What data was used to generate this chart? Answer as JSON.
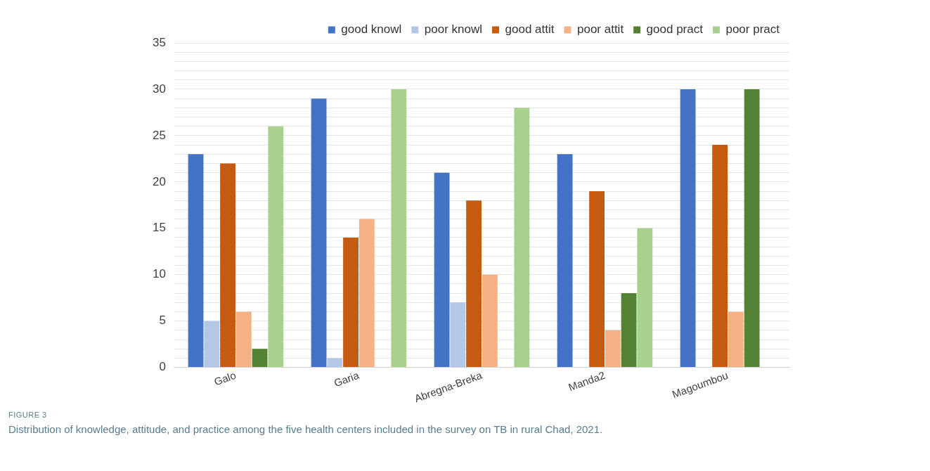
{
  "chart_data": {
    "type": "bar",
    "categories": [
      "Galo",
      "Garia",
      "Abregna-Breka",
      "Manda2",
      "Magoumbou"
    ],
    "series": [
      {
        "name": "good knowl",
        "color": "#4472c4",
        "values": [
          23,
          29,
          21,
          23,
          30
        ]
      },
      {
        "name": "poor knowl",
        "color": "#b4c7e7",
        "values": [
          5,
          1,
          7,
          0,
          0
        ]
      },
      {
        "name": "good attit",
        "color": "#c55a11",
        "values": [
          22,
          14,
          18,
          19,
          24
        ]
      },
      {
        "name": "poor attit",
        "color": "#f4b183",
        "values": [
          6,
          16,
          10,
          4,
          6
        ]
      },
      {
        "name": "good pract",
        "color": "#548235",
        "values": [
          2,
          0,
          0,
          8,
          30
        ]
      },
      {
        "name": "poor pract",
        "color": "#a9d18e",
        "values": [
          26,
          30,
          28,
          15,
          0
        ]
      }
    ],
    "ylim": [
      0,
      35
    ],
    "yticks": [
      0,
      {
        "value": 1,
        "label": null
      },
      {
        "value": 2,
        "label": null
      },
      {
        "value": 3,
        "label": null
      },
      {
        "value": 4,
        "label": null
      },
      5,
      {
        "value": 6,
        "label": null
      },
      {
        "value": 7,
        "label": null
      },
      {
        "value": 8,
        "label": null
      },
      {
        "value": 9,
        "label": null
      },
      10,
      {
        "value": 11,
        "label": null
      },
      {
        "value": 12,
        "label": null
      },
      {
        "value": 13,
        "label": null
      },
      {
        "value": 14,
        "label": null
      },
      15,
      {
        "value": 16,
        "label": null
      },
      {
        "value": 17,
        "label": null
      },
      {
        "value": 18,
        "label": null
      },
      {
        "value": 19,
        "label": null
      },
      20,
      {
        "value": 21,
        "label": null
      },
      {
        "value": 22,
        "label": null
      },
      {
        "value": 23,
        "label": null
      },
      {
        "value": 24,
        "label": null
      },
      25,
      {
        "value": 26,
        "label": null
      },
      {
        "value": 27,
        "label": null
      },
      {
        "value": 28,
        "label": null
      },
      {
        "value": 29,
        "label": null
      },
      30,
      {
        "value": 31,
        "label": null
      },
      {
        "value": 32,
        "label": null
      },
      {
        "value": 33,
        "label": null
      },
      {
        "value": 34,
        "label": null
      },
      35
    ],
    "grid": "y",
    "legend": "top right",
    "annotations": [
      "FIGURE 3",
      "Distribution of knowledge, attitude, and practice among the five health centers included in the survey on TB in rural Chad, 2021."
    ]
  }
}
